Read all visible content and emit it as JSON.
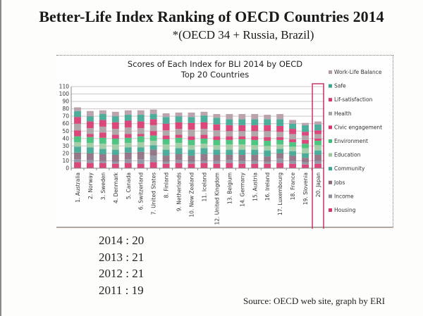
{
  "slide": {
    "title": "Better-Life Index Ranking of OECD Countries 2014",
    "subtitle": "*(OECD 34 + Russia,  Brazil)",
    "japan_rank_history": [
      {
        "year": "2014",
        "rank": "20",
        "label": "2014 :  20"
      },
      {
        "year": "2013",
        "rank": "21",
        "label": "2013 :  21"
      },
      {
        "year": "2012",
        "rank": "21",
        "label": "2012 :  21"
      },
      {
        "year": "2011",
        "rank": "19",
        "label": "2011 :  19"
      }
    ],
    "source": "Source: OECD web site, graph by ERI"
  },
  "chart_data": {
    "type": "bar",
    "stacked": true,
    "title": "Scores of Each Index for BLI 2014 by OECD",
    "subtitle": "Top 20 Countries",
    "xlabel": "",
    "ylabel": "",
    "ylim": [
      0,
      110
    ],
    "yticks": [
      0,
      10,
      20,
      30,
      40,
      50,
      60,
      70,
      80,
      90,
      100,
      110
    ],
    "grid": true,
    "legend_position": "right",
    "highlight": {
      "category": "20. Japan",
      "color": "#c8336a"
    },
    "categories": [
      "1. Australia",
      "2. Norway",
      "3. Sweden",
      "4. Denmark",
      "5. Canada",
      "6. Switzerland",
      "7. United States",
      "8. Finland",
      "9. Netherlands",
      "10. New Zealand",
      "11. Iceland",
      "12. United Kingdom",
      "13. Belgium",
      "14. Germany",
      "15. Austria",
      "16. Ireland",
      "17. Luxembourg",
      "18. France",
      "19. Slovenia",
      "20. Japan"
    ],
    "series": [
      {
        "name": "Housing",
        "color": "#d8336e",
        "values": [
          8,
          7,
          7,
          6,
          7,
          6,
          8,
          6,
          7,
          6,
          7,
          6,
          7,
          6,
          6,
          6,
          7,
          6,
          5,
          6
        ]
      },
      {
        "name": "Income",
        "color": "#8a8fa0",
        "values": [
          4,
          4,
          3,
          3,
          5,
          6,
          9,
          3,
          4,
          3,
          3,
          4,
          4,
          4,
          4,
          3,
          6,
          4,
          3,
          4
        ]
      },
      {
        "name": "Jobs",
        "color": "#8c6a7c",
        "values": [
          9,
          9,
          9,
          9,
          9,
          10,
          8,
          8,
          8,
          8,
          9,
          8,
          7,
          8,
          8,
          7,
          7,
          7,
          6,
          8
        ]
      },
      {
        "name": "Community",
        "color": "#3aa590",
        "values": [
          8,
          8,
          7,
          7,
          7,
          6,
          6,
          8,
          8,
          8,
          8,
          7,
          7,
          7,
          7,
          8,
          6,
          6,
          6,
          6
        ]
      },
      {
        "name": "Education",
        "color": "#9cc8a0",
        "values": [
          6,
          6,
          7,
          7,
          6,
          7,
          6,
          7,
          7,
          6,
          6,
          6,
          7,
          7,
          6,
          6,
          6,
          6,
          7,
          7
        ]
      },
      {
        "name": "Environment",
        "color": "#3bbf73",
        "values": [
          8,
          8,
          8,
          8,
          7,
          8,
          7,
          7,
          7,
          7,
          7,
          7,
          6,
          7,
          7,
          7,
          6,
          6,
          6,
          6
        ]
      },
      {
        "name": "Civic engagement",
        "color": "#d8336e",
        "values": [
          8,
          4,
          7,
          5,
          5,
          3,
          6,
          5,
          4,
          5,
          5,
          5,
          5,
          4,
          5,
          5,
          4,
          4,
          5,
          3
        ]
      },
      {
        "name": "Health",
        "color": "#a8a0a0",
        "values": [
          9,
          8,
          8,
          8,
          9,
          8,
          8,
          7,
          8,
          9,
          8,
          8,
          7,
          7,
          7,
          8,
          7,
          7,
          6,
          6
        ]
      },
      {
        "name": "Lif-satisfaction",
        "color": "#d8336e",
        "values": [
          9,
          9,
          9,
          9,
          9,
          9,
          8,
          9,
          9,
          9,
          9,
          8,
          8,
          8,
          8,
          8,
          8,
          7,
          5,
          5
        ]
      },
      {
        "name": "Safe",
        "color": "#3aa590",
        "values": [
          8,
          7,
          8,
          8,
          8,
          9,
          7,
          9,
          8,
          8,
          9,
          9,
          8,
          8,
          8,
          8,
          9,
          7,
          9,
          8
        ]
      },
      {
        "name": "Work-Life Balance",
        "color": "#b59aa6",
        "values": [
          5,
          7,
          5,
          6,
          6,
          6,
          6,
          5,
          5,
          6,
          5,
          5,
          7,
          7,
          7,
          6,
          7,
          5,
          3,
          4
        ]
      }
    ]
  }
}
